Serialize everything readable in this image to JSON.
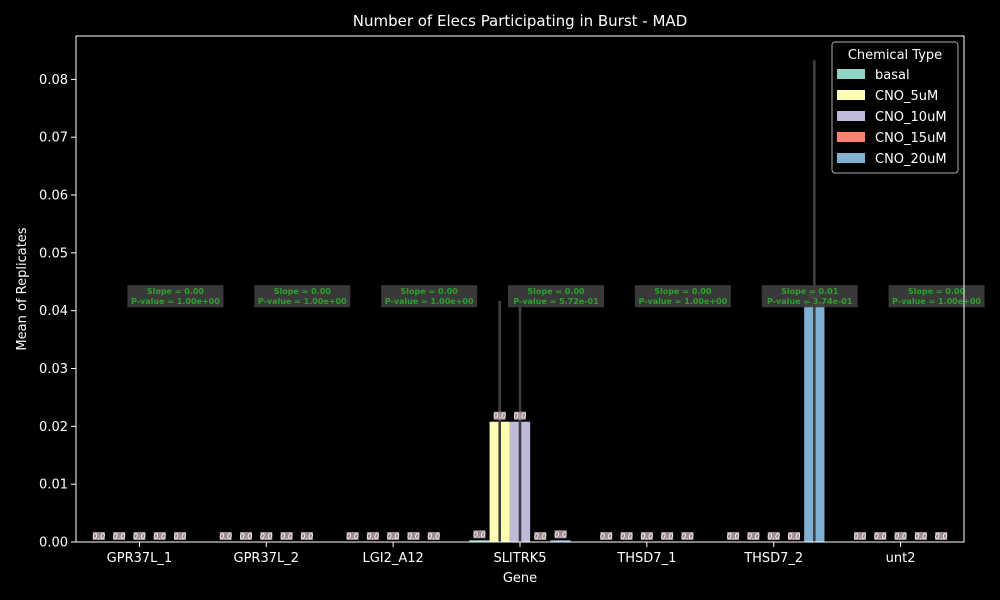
{
  "chart_data": {
    "type": "bar",
    "title": "Number of Elecs Participating in Burst - MAD",
    "xlabel": "Gene",
    "ylabel": "Mean of Replicates",
    "ylim": [
      0,
      0.0875
    ],
    "yticks": [
      "0.00",
      "0.01",
      "0.02",
      "0.03",
      "0.04",
      "0.05",
      "0.06",
      "0.07",
      "0.08"
    ],
    "grid": false,
    "categories": [
      "GPR37L_1",
      "GPR37L_2",
      "LGI2_A12",
      "SLITRK5",
      "THSD7_1",
      "THSD7_2",
      "unt2"
    ],
    "legend": {
      "title": "Chemical Type",
      "position": "top-right"
    },
    "series": [
      {
        "name": "basal",
        "color": "#8dd3c7",
        "values": [
          0,
          0,
          0,
          0.0003,
          0,
          0,
          0
        ],
        "error_top": [
          null,
          null,
          null,
          null,
          null,
          null,
          null
        ]
      },
      {
        "name": "CNO_5uM",
        "color": "#ffffb3",
        "values": [
          0,
          0,
          0,
          0.0208,
          0,
          0,
          0
        ],
        "error_top": [
          null,
          null,
          null,
          0.0417,
          null,
          null,
          null
        ]
      },
      {
        "name": "CNO_10uM",
        "color": "#bebada",
        "values": [
          0,
          0,
          0,
          0.0208,
          0,
          0,
          0
        ],
        "error_top": [
          null,
          null,
          null,
          0.0417,
          null,
          null,
          null
        ]
      },
      {
        "name": "CNO_15uM",
        "color": "#fb8072",
        "values": [
          0,
          0,
          0,
          0,
          0,
          0,
          0
        ],
        "error_top": [
          null,
          null,
          null,
          null,
          null,
          null,
          null
        ]
      },
      {
        "name": "CNO_20uM",
        "color": "#80b1d3",
        "values": [
          0,
          0,
          0,
          0.0003,
          0,
          0.0417,
          0
        ],
        "error_top": [
          null,
          null,
          null,
          null,
          null,
          0.0833,
          null
        ]
      }
    ],
    "bar_labels": [
      [
        "0.0",
        "0.0",
        "0.0",
        "0.0",
        "0.0"
      ],
      [
        "0.0",
        "0.0",
        "0.0",
        "0.0",
        "0.0"
      ],
      [
        "0.0",
        "0.0",
        "0.0",
        "0.0",
        "0.0"
      ],
      [
        "0.0",
        "0.0",
        "0.0",
        "0.0",
        "0.0"
      ],
      [
        "0.0",
        "0.0",
        "0.0",
        "0.0",
        "0.0"
      ],
      [
        "0.0",
        "0.0",
        "0.0",
        "0.0",
        "0.0"
      ],
      [
        "0.0",
        "0.0",
        "0.0",
        "0.0",
        "0.0"
      ]
    ],
    "annotations": [
      {
        "category": "GPR37L_1",
        "lines": [
          "Slope = 0.00",
          "P-value = 1.00e+00"
        ],
        "y": 0.0425
      },
      {
        "category": "GPR37L_2",
        "lines": [
          "Slope = 0.00",
          "P-value = 1.00e+00"
        ],
        "y": 0.0425
      },
      {
        "category": "LGI2_A12",
        "lines": [
          "Slope = 0.00",
          "P-value = 1.00e+00"
        ],
        "y": 0.0425
      },
      {
        "category": "SLITRK5",
        "lines": [
          "Slope = 0.00",
          "P-value = 5.72e-01"
        ],
        "y": 0.0425
      },
      {
        "category": "THSD7_1",
        "lines": [
          "Slope = 0.00",
          "P-value = 1.00e+00"
        ],
        "y": 0.0425
      },
      {
        "category": "THSD7_2",
        "lines": [
          "Slope = 0.01",
          "P-value = 3.74e-01"
        ],
        "y": 0.0425
      },
      {
        "category": "unt2",
        "lines": [
          "Slope = 0.00",
          "P-value = 1.00e+00"
        ],
        "y": 0.0425
      }
    ]
  }
}
